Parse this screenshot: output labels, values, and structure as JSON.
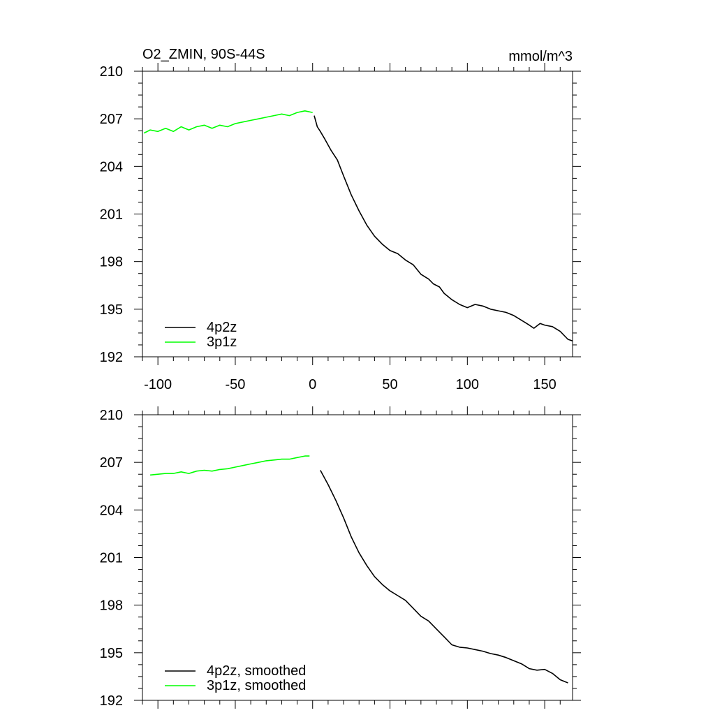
{
  "chart_data": [
    {
      "type": "line",
      "title": "O2_ZMIN, 90S-44S",
      "units": "mmol/m^3",
      "xlim": [
        -110,
        168
      ],
      "ylim": [
        192,
        210
      ],
      "yticks": [
        192,
        195,
        198,
        201,
        204,
        207,
        210
      ],
      "ytick_labels": [
        "192",
        "195",
        "198",
        "201",
        "204",
        "207",
        "210"
      ],
      "xticks": [
        -100,
        -50,
        0,
        50,
        100,
        150
      ],
      "xtick_labels": [
        "-100",
        "-50",
        "0",
        "50",
        "100",
        "150"
      ],
      "legend": "bottom-left",
      "series": [
        {
          "name": "4p2z",
          "color": "#000000",
          "x": [
            1,
            3,
            5,
            8,
            12,
            16,
            20,
            25,
            30,
            35,
            40,
            45,
            50,
            55,
            60,
            65,
            70,
            75,
            78,
            82,
            85,
            90,
            95,
            100,
            105,
            110,
            115,
            120,
            125,
            130,
            135,
            140,
            143,
            147,
            150,
            155,
            160,
            165,
            168
          ],
          "y": [
            207.2,
            206.5,
            206.2,
            205.7,
            205.0,
            204.4,
            203.4,
            202.2,
            201.2,
            200.3,
            199.6,
            199.1,
            198.7,
            198.5,
            198.1,
            197.8,
            197.2,
            196.9,
            196.6,
            196.4,
            196.0,
            195.6,
            195.3,
            195.1,
            195.3,
            195.2,
            195.0,
            194.9,
            194.8,
            194.6,
            194.3,
            194.0,
            193.8,
            194.1,
            194.0,
            193.9,
            193.6,
            193.1,
            193.0
          ]
        },
        {
          "name": "3p1z",
          "color": "#00ff00",
          "x": [
            -109,
            -105,
            -100,
            -95,
            -90,
            -85,
            -80,
            -75,
            -70,
            -65,
            -60,
            -55,
            -50,
            -45,
            -40,
            -35,
            -30,
            -25,
            -20,
            -15,
            -10,
            -5,
            0
          ],
          "y": [
            206.1,
            206.3,
            206.2,
            206.4,
            206.2,
            206.5,
            206.3,
            206.5,
            206.6,
            206.4,
            206.6,
            206.5,
            206.7,
            206.8,
            206.9,
            207.0,
            207.1,
            207.2,
            207.3,
            207.2,
            207.4,
            207.5,
            207.4
          ]
        }
      ]
    },
    {
      "type": "line",
      "xlim": [
        -110,
        168
      ],
      "ylim": [
        192,
        210
      ],
      "yticks": [
        192,
        195,
        198,
        201,
        204,
        207,
        210
      ],
      "ytick_labels": [
        "192",
        "195",
        "198",
        "201",
        "204",
        "207",
        "210"
      ],
      "xticks": [
        -100,
        -50,
        0,
        50,
        100,
        150
      ],
      "legend": "bottom-left",
      "series": [
        {
          "name": "4p2z, smoothed",
          "color": "#000000",
          "x": [
            5,
            10,
            15,
            20,
            25,
            30,
            35,
            40,
            45,
            50,
            55,
            60,
            65,
            70,
            75,
            80,
            85,
            90,
            95,
            100,
            105,
            110,
            115,
            120,
            125,
            130,
            135,
            140,
            145,
            150,
            155,
            160,
            165
          ],
          "y": [
            206.5,
            205.6,
            204.6,
            203.5,
            202.3,
            201.3,
            200.5,
            199.8,
            199.3,
            198.9,
            198.6,
            198.3,
            197.8,
            197.3,
            197.0,
            196.5,
            196.0,
            195.5,
            195.35,
            195.3,
            195.2,
            195.1,
            194.95,
            194.85,
            194.7,
            194.5,
            194.3,
            194.0,
            193.9,
            193.95,
            193.7,
            193.3,
            193.1
          ]
        },
        {
          "name": "3p1z, smoothed",
          "color": "#00ff00",
          "x": [
            -105,
            -100,
            -95,
            -90,
            -85,
            -80,
            -75,
            -70,
            -65,
            -60,
            -55,
            -50,
            -45,
            -40,
            -35,
            -30,
            -25,
            -20,
            -15,
            -10,
            -5,
            -2
          ],
          "y": [
            206.2,
            206.25,
            206.3,
            206.3,
            206.4,
            206.3,
            206.45,
            206.5,
            206.45,
            206.55,
            206.6,
            206.7,
            206.8,
            206.9,
            207.0,
            207.1,
            207.15,
            207.2,
            207.2,
            207.3,
            207.4,
            207.4
          ]
        }
      ]
    }
  ]
}
